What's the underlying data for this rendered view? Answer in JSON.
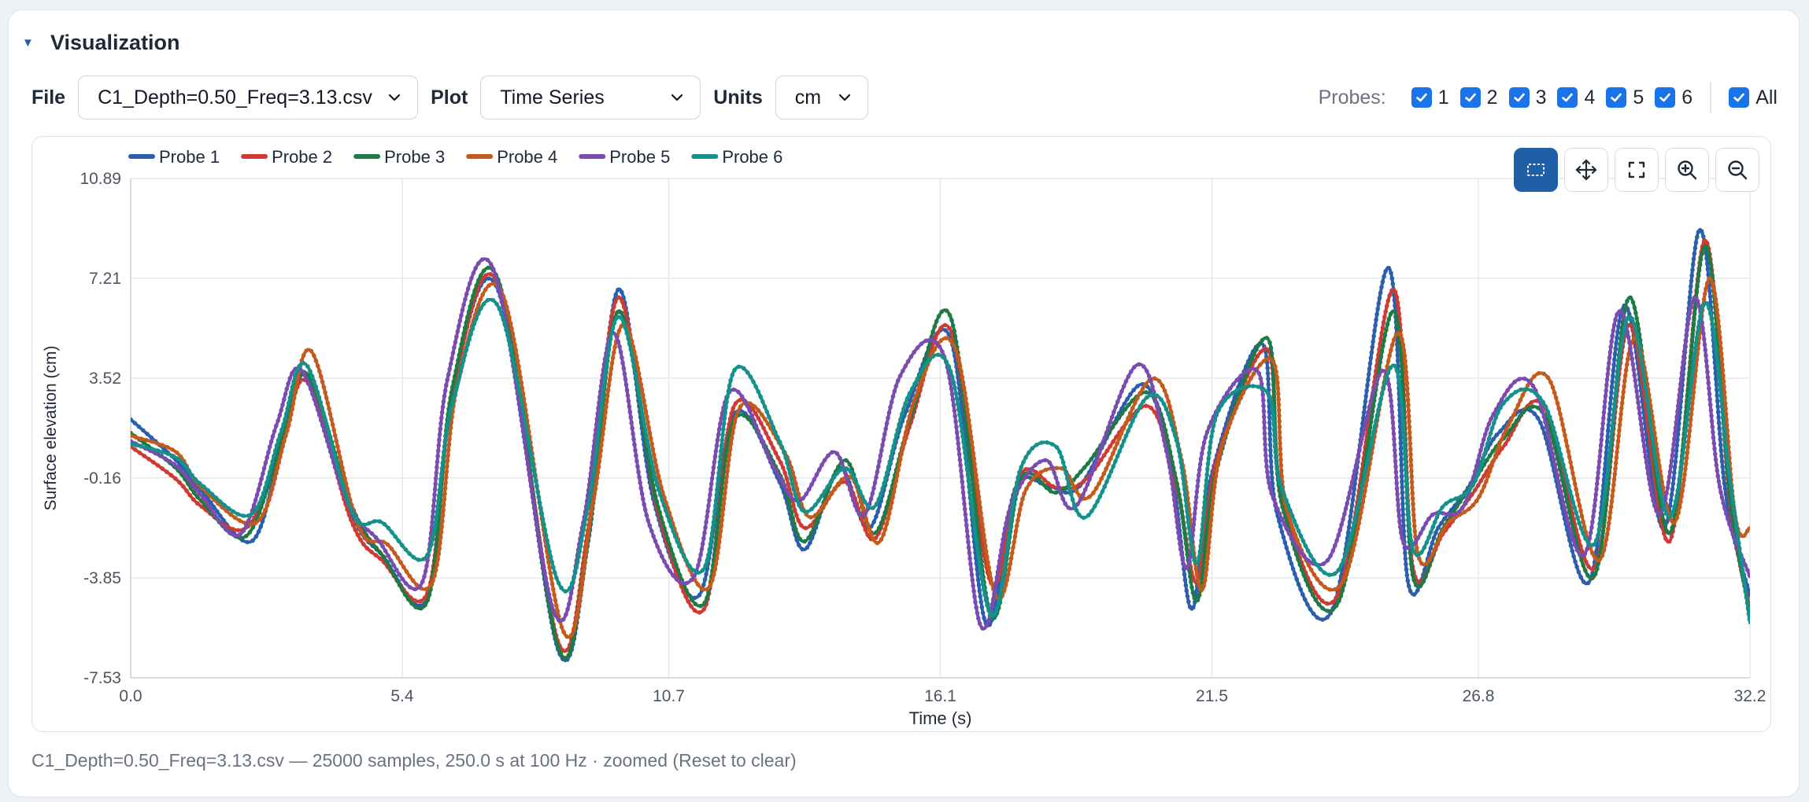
{
  "section": {
    "title": "Visualization"
  },
  "controls": {
    "file_label": "File",
    "file_value": "C1_Depth=0.50_Freq=3.13.csv",
    "plot_label": "Plot",
    "plot_value": "Time Series",
    "units_label": "Units",
    "units_value": "cm",
    "probes_label": "Probes:",
    "probes": [
      {
        "label": "1",
        "checked": true
      },
      {
        "label": "2",
        "checked": true
      },
      {
        "label": "3",
        "checked": true
      },
      {
        "label": "4",
        "checked": true
      },
      {
        "label": "5",
        "checked": true
      },
      {
        "label": "6",
        "checked": true
      }
    ],
    "all_label": "All",
    "all_checked": true
  },
  "toolbar": [
    {
      "name": "box-zoom",
      "icon": "box-select-icon",
      "active": true
    },
    {
      "name": "pan",
      "icon": "move-icon",
      "active": false
    },
    {
      "name": "reset",
      "icon": "fullscreen-icon",
      "active": false
    },
    {
      "name": "zoom-in",
      "icon": "zoom-in-icon",
      "active": false
    },
    {
      "name": "zoom-out",
      "icon": "zoom-out-icon",
      "active": false
    }
  ],
  "chart_data": {
    "type": "line",
    "xlabel": "Time (s)",
    "ylabel": "Surface elevation (cm)",
    "xlim": [
      0.0,
      32.2
    ],
    "ylim": [
      -7.53,
      10.89
    ],
    "xticks": [
      "0.0",
      "5.4",
      "10.7",
      "16.1",
      "21.5",
      "26.8",
      "32.2"
    ],
    "yticks": [
      "10.89",
      "7.21",
      "3.52",
      "-0.16",
      "-3.85",
      "-7.53"
    ],
    "grid": true,
    "legend_position": "top-left",
    "series": [
      {
        "name": "Probe 1",
        "color": "#2b5fad",
        "x": [
          0,
          0.9,
          1.4,
          2.4,
          3.0,
          3.5,
          4.4,
          5.0,
          5.9,
          6.4,
          7.3,
          8.5,
          9.1,
          9.7,
          10.4,
          11.3,
          12.0,
          12.9,
          13.4,
          14.1,
          14.7,
          15.4,
          16.3,
          17.0,
          17.6,
          18.3,
          18.9,
          20.1,
          20.7,
          21.1,
          21.5,
          22.5,
          22.8,
          23.9,
          25.0,
          25.4,
          26.0,
          26.6,
          27.2,
          28.0,
          29.0,
          29.7,
          30.5,
          31.2,
          31.7,
          32.2
        ],
        "y": [
          2.0,
          0.5,
          -0.6,
          -2.5,
          1.0,
          3.6,
          -1.5,
          -3.0,
          -4.6,
          3.0,
          6.8,
          -6.5,
          -2.5,
          6.8,
          -1.0,
          -4.5,
          2.2,
          -0.3,
          -2.8,
          0.2,
          -2.0,
          2.2,
          5.0,
          -5.5,
          -0.5,
          -0.5,
          -0.4,
          3.3,
          0.0,
          -5.0,
          0.0,
          4.8,
          -1.5,
          -5.0,
          7.6,
          -4.0,
          -2.0,
          -0.5,
          1.5,
          2.0,
          -4.0,
          6.2,
          -2.0,
          9.0,
          -0.5,
          -4.5
        ]
      },
      {
        "name": "Probe 2",
        "color": "#cf3a32",
        "x": [
          0,
          0.9,
          1.4,
          2.3,
          3.0,
          3.5,
          4.4,
          5.0,
          5.9,
          6.4,
          7.3,
          8.5,
          9.1,
          9.7,
          10.5,
          11.4,
          12.0,
          12.9,
          13.4,
          14.2,
          14.8,
          15.5,
          16.3,
          17.1,
          17.7,
          18.4,
          19.0,
          20.2,
          20.8,
          21.2,
          21.6,
          22.6,
          22.9,
          24.0,
          25.1,
          25.5,
          26.1,
          26.7,
          27.3,
          28.1,
          29.1,
          29.8,
          30.6,
          31.3,
          31.8,
          32.2
        ],
        "y": [
          1.0,
          -0.2,
          -1.2,
          -2.0,
          1.0,
          3.4,
          -1.8,
          -3.2,
          -4.4,
          3.0,
          7.0,
          -6.2,
          -2.0,
          6.5,
          -1.5,
          -5.0,
          2.5,
          0.5,
          -2.0,
          -0.3,
          -2.4,
          1.8,
          5.3,
          -4.0,
          0.0,
          -0.5,
          -0.2,
          2.5,
          -0.5,
          -4.0,
          0.5,
          4.6,
          -1.0,
          -4.5,
          6.8,
          -3.5,
          -2.2,
          -0.7,
          1.0,
          2.5,
          -3.5,
          5.5,
          -2.5,
          8.6,
          -1.0,
          -5.0
        ]
      },
      {
        "name": "Probe 3",
        "color": "#1f7a45",
        "x": [
          0,
          0.9,
          1.4,
          2.3,
          3.0,
          3.5,
          4.4,
          5.0,
          5.9,
          6.4,
          7.3,
          8.5,
          9.1,
          9.7,
          10.5,
          11.4,
          12.0,
          12.9,
          13.4,
          14.2,
          14.8,
          15.5,
          16.3,
          17.1,
          17.7,
          18.4,
          19.0,
          20.2,
          20.8,
          21.2,
          21.6,
          22.6,
          22.9,
          24.0,
          25.1,
          25.5,
          26.1,
          26.7,
          27.3,
          28.1,
          29.1,
          29.8,
          30.6,
          31.3,
          31.8,
          32.2
        ],
        "y": [
          1.5,
          0.2,
          -1.0,
          -2.3,
          1.2,
          3.7,
          -1.2,
          -3.0,
          -4.7,
          3.2,
          7.2,
          -6.4,
          -2.4,
          6.0,
          -1.3,
          -4.8,
          2.0,
          0.0,
          -2.5,
          0.5,
          -2.2,
          2.0,
          5.8,
          -5.2,
          -0.2,
          -0.7,
          0.3,
          3.0,
          -0.3,
          -4.7,
          0.2,
          5.0,
          -1.2,
          -4.8,
          6.0,
          -3.8,
          -2.0,
          -0.3,
          1.3,
          2.2,
          -3.8,
          6.5,
          -2.2,
          8.4,
          -0.8,
          -5.2
        ]
      },
      {
        "name": "Probe 4",
        "color": "#c45a1c",
        "x": [
          0,
          0.9,
          1.4,
          2.5,
          3.1,
          3.6,
          4.5,
          5.1,
          6.0,
          6.5,
          7.4,
          8.6,
          9.2,
          9.8,
          10.6,
          11.5,
          12.1,
          13.0,
          13.5,
          14.3,
          14.9,
          15.6,
          16.4,
          17.2,
          17.8,
          18.5,
          19.1,
          20.3,
          20.9,
          21.3,
          21.7,
          22.7,
          23.0,
          24.1,
          25.2,
          25.6,
          26.2,
          26.8,
          27.4,
          28.2,
          29.2,
          29.9,
          30.7,
          31.4,
          31.9,
          32.2
        ],
        "y": [
          1.4,
          0.8,
          -0.5,
          -1.8,
          1.5,
          4.5,
          -1.8,
          -2.6,
          -4.0,
          3.3,
          6.6,
          -5.8,
          -1.0,
          5.5,
          -0.8,
          -4.2,
          2.4,
          0.8,
          -1.6,
          -0.1,
          -2.5,
          2.8,
          4.6,
          -4.5,
          -0.6,
          0.2,
          -0.8,
          3.5,
          0.5,
          -4.3,
          1.0,
          4.2,
          -1.4,
          -4.0,
          5.2,
          -3.0,
          -1.8,
          -0.9,
          1.8,
          3.5,
          -3.2,
          5.0,
          -1.8,
          7.2,
          -1.5,
          -2.0
        ]
      },
      {
        "name": "Probe 5",
        "color": "#7a4bb0",
        "x": [
          0,
          0.9,
          1.4,
          2.2,
          2.9,
          3.4,
          4.3,
          4.9,
          5.8,
          6.3,
          7.2,
          8.4,
          9.0,
          9.6,
          10.3,
          11.2,
          11.9,
          12.8,
          13.3,
          14.0,
          14.6,
          15.3,
          16.2,
          16.9,
          17.5,
          18.2,
          18.8,
          20.0,
          20.6,
          21.0,
          21.4,
          22.4,
          22.7,
          23.8,
          24.9,
          25.3,
          25.9,
          26.5,
          27.1,
          27.9,
          28.9,
          29.6,
          30.4,
          31.1,
          31.6,
          32.2
        ],
        "y": [
          1.2,
          0.3,
          -0.8,
          -2.2,
          1.8,
          3.8,
          -1.0,
          -2.4,
          -4.0,
          3.5,
          7.6,
          -5.0,
          -1.8,
          5.2,
          -1.8,
          -3.8,
          3.0,
          0.2,
          -1.0,
          0.8,
          -1.5,
          3.6,
          4.2,
          -5.6,
          -1.2,
          0.5,
          -1.2,
          4.0,
          0.8,
          -3.5,
          1.5,
          3.8,
          -0.8,
          -3.2,
          3.8,
          -2.5,
          -1.5,
          -1.2,
          2.2,
          3.2,
          -3.0,
          6.0,
          -1.5,
          6.5,
          -0.5,
          -3.8
        ]
      },
      {
        "name": "Probe 6",
        "color": "#14918b",
        "x": [
          0,
          0.9,
          1.4,
          2.4,
          3.0,
          3.5,
          4.4,
          5.0,
          5.9,
          6.4,
          7.3,
          8.5,
          9.1,
          9.7,
          10.5,
          11.4,
          12.0,
          12.9,
          13.4,
          14.2,
          14.8,
          15.5,
          16.3,
          17.1,
          17.7,
          18.4,
          19.0,
          20.2,
          20.8,
          21.2,
          21.6,
          22.6,
          22.9,
          24.0,
          25.1,
          25.5,
          26.1,
          26.7,
          27.3,
          28.1,
          29.1,
          29.8,
          30.6,
          31.3,
          31.8,
          32.2
        ],
        "y": [
          1.1,
          0.6,
          -0.4,
          -1.5,
          1.6,
          4.0,
          -1.4,
          -1.8,
          -3.0,
          2.6,
          6.2,
          -4.0,
          -1.2,
          5.8,
          -0.6,
          -3.5,
          3.8,
          1.2,
          -1.4,
          0.2,
          -1.2,
          3.0,
          3.8,
          -5.2,
          0.2,
          1.0,
          -1.6,
          2.8,
          1.2,
          -3.3,
          2.2,
          3.0,
          -0.6,
          -3.6,
          4.0,
          -2.8,
          -1.2,
          -0.4,
          2.6,
          2.6,
          -2.6,
          5.8,
          -1.6,
          6.3,
          -0.2,
          -5.5
        ]
      }
    ]
  },
  "footer": {
    "text": "C1_Depth=0.50_Freq=3.13.csv — 25000 samples, 250.0 s at 100 Hz · zoomed (Reset to clear)"
  }
}
